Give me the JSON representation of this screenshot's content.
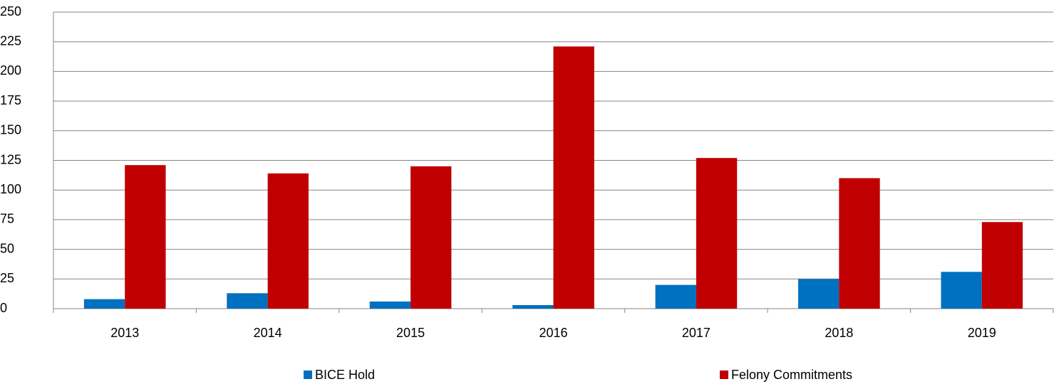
{
  "chart_data": {
    "type": "bar",
    "categories": [
      "2013",
      "2014",
      "2015",
      "2016",
      "2017",
      "2018",
      "2019"
    ],
    "series": [
      {
        "name": "BICE Hold",
        "color": "#0070c0",
        "values": [
          8,
          13,
          6,
          3,
          20,
          25,
          31
        ]
      },
      {
        "name": "Felony Commitments",
        "color": "#c00000",
        "values": [
          121,
          114,
          120,
          221,
          127,
          110,
          73
        ]
      }
    ],
    "ylim": [
      0,
      250
    ],
    "yticks": [
      0,
      25,
      50,
      75,
      100,
      125,
      150,
      175,
      200,
      225,
      250
    ],
    "grid": true,
    "legend": "bottom"
  }
}
